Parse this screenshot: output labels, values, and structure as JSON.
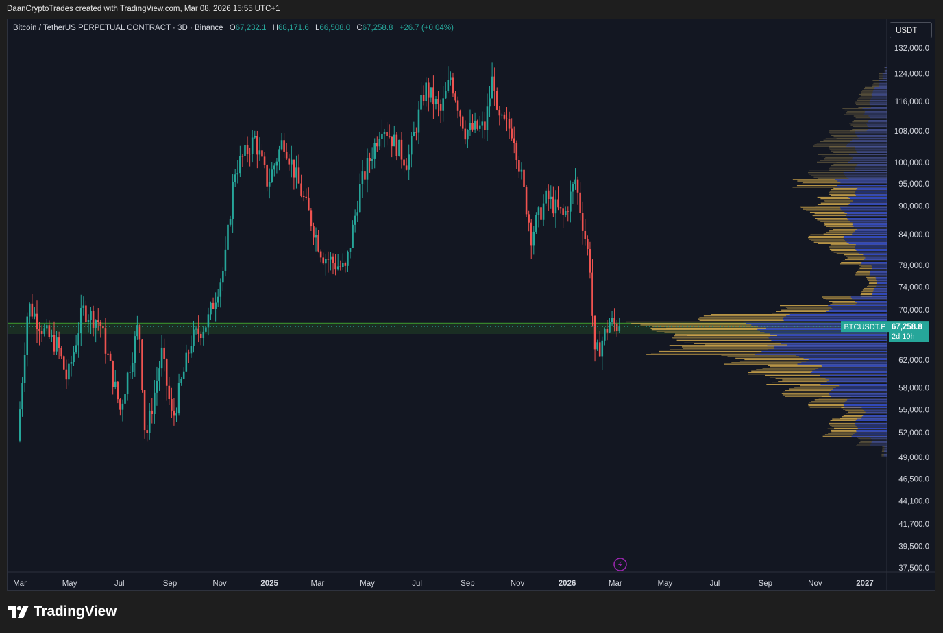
{
  "header": {
    "credit": "DaanCryptoTrades created with TradingView.com, Mar 08, 2026 15:55 UTC+1"
  },
  "legend": {
    "symbol": "Bitcoin / TetherUS PERPETUAL CONTRACT · 3D · Binance",
    "open_label": "O",
    "open": "67,232.1",
    "high_label": "H",
    "high": "68,171.6",
    "low_label": "L",
    "low": "66,508.0",
    "close_label": "C",
    "close": "67,258.8",
    "change": "+26.7 (+0.04%)"
  },
  "currency": "USDT",
  "price_badge": {
    "ticker": "BTCUSDT.P",
    "price": "67,258.8",
    "countdown": "2d 10h"
  },
  "footer": {
    "brand": "TradingView"
  },
  "colors": {
    "up": "#26a69a",
    "down": "#ef5350",
    "profile_gold": "#c9a24a",
    "profile_blue": "#2a45c0",
    "zone": "#3f9b2e",
    "accent": "#9c27b0"
  },
  "chart_data": {
    "type": "candlestick",
    "x_ticks": [
      "Mar",
      "May",
      "Jul",
      "Sep",
      "Nov",
      "2025",
      "Mar",
      "May",
      "Jul",
      "Sep",
      "Nov",
      "2026",
      "Mar",
      "May",
      "Jul",
      "Sep",
      "Nov",
      "2027"
    ],
    "y_ticks": [
      132000,
      124000,
      116000,
      108000,
      100000,
      95000,
      90000,
      84000,
      78000,
      74000,
      70000,
      62000,
      58000,
      55000,
      52000,
      49000,
      46500,
      44100,
      41700,
      39500,
      37500
    ],
    "y_tick_labels": [
      "132,000.0",
      "124,000.0",
      "116,000.0",
      "108,000.0",
      "100,000.0",
      "95,000.0",
      "90,000.0",
      "84,000.0",
      "78,000.0",
      "74,000.0",
      "70,000.0",
      "62,000.0",
      "58,000.0",
      "55,000.0",
      "52,000.0",
      "49,000.0",
      "46,500.0",
      "44,100.0",
      "41,700.0",
      "39,500.0",
      "37,500.0"
    ],
    "ylim": [
      37500,
      132000
    ],
    "scale": "log",
    "price_path": [
      {
        "date": "2024-03-01",
        "price": 51000
      },
      {
        "date": "2024-03-14",
        "price": 71000
      },
      {
        "date": "2024-04-05",
        "price": 66000
      },
      {
        "date": "2024-04-20",
        "price": 64000
      },
      {
        "date": "2024-05-01",
        "price": 59000
      },
      {
        "date": "2024-05-20",
        "price": 70000
      },
      {
        "date": "2024-06-10",
        "price": 68000
      },
      {
        "date": "2024-07-05",
        "price": 55000
      },
      {
        "date": "2024-07-28",
        "price": 68000
      },
      {
        "date": "2024-08-05",
        "price": 51000
      },
      {
        "date": "2024-08-25",
        "price": 63000
      },
      {
        "date": "2024-09-07",
        "price": 53500
      },
      {
        "date": "2024-09-30",
        "price": 65000
      },
      {
        "date": "2024-10-20",
        "price": 68000
      },
      {
        "date": "2024-11-10",
        "price": 78000
      },
      {
        "date": "2024-11-22",
        "price": 98000
      },
      {
        "date": "2024-12-17",
        "price": 106000
      },
      {
        "date": "2025-01-02",
        "price": 95000
      },
      {
        "date": "2025-01-21",
        "price": 106000
      },
      {
        "date": "2025-02-05",
        "price": 97000
      },
      {
        "date": "2025-03-10",
        "price": 80000
      },
      {
        "date": "2025-04-07",
        "price": 77000
      },
      {
        "date": "2025-04-25",
        "price": 94000
      },
      {
        "date": "2025-05-22",
        "price": 110000
      },
      {
        "date": "2025-06-22",
        "price": 100000
      },
      {
        "date": "2025-07-14",
        "price": 120000
      },
      {
        "date": "2025-08-02",
        "price": 113000
      },
      {
        "date": "2025-08-14",
        "price": 123000
      },
      {
        "date": "2025-09-01",
        "price": 108000
      },
      {
        "date": "2025-09-25",
        "price": 109000
      },
      {
        "date": "2025-10-06",
        "price": 125000
      },
      {
        "date": "2025-10-10",
        "price": 111000
      },
      {
        "date": "2025-10-30",
        "price": 108000
      },
      {
        "date": "2025-11-21",
        "price": 84000
      },
      {
        "date": "2025-12-10",
        "price": 92000
      },
      {
        "date": "2025-12-31",
        "price": 87500
      },
      {
        "date": "2026-01-14",
        "price": 96000
      },
      {
        "date": "2026-02-02",
        "price": 77000
      },
      {
        "date": "2026-02-06",
        "price": 62000
      },
      {
        "date": "2026-02-25",
        "price": 68000
      },
      {
        "date": "2026-03-08",
        "price": 67258.8
      }
    ],
    "zone": {
      "low": 66200,
      "high": 67800
    },
    "last_price": 67258.8,
    "volume_profile": {
      "value_area": [
        52000,
        95000
      ],
      "relative_volume": [
        {
          "price": 49500,
          "vol": 0.02
        },
        {
          "price": 51000,
          "vol": 0.12
        },
        {
          "price": 52000,
          "vol": 0.25
        },
        {
          "price": 53000,
          "vol": 0.22
        },
        {
          "price": 54500,
          "vol": 0.18
        },
        {
          "price": 56000,
          "vol": 0.3
        },
        {
          "price": 57500,
          "vol": 0.4
        },
        {
          "price": 59000,
          "vol": 0.48
        },
        {
          "price": 60500,
          "vol": 0.53
        },
        {
          "price": 62000,
          "vol": 0.65
        },
        {
          "price": 63500,
          "vol": 0.92
        },
        {
          "price": 65000,
          "vol": 0.82
        },
        {
          "price": 66500,
          "vol": 0.9
        },
        {
          "price": 67500,
          "vol": 1.0
        },
        {
          "price": 68500,
          "vol": 0.72
        },
        {
          "price": 70000,
          "vol": 0.45
        },
        {
          "price": 71500,
          "vol": 0.25
        },
        {
          "price": 73000,
          "vol": 0.1
        },
        {
          "price": 75000,
          "vol": 0.08
        },
        {
          "price": 77000,
          "vol": 0.12
        },
        {
          "price": 79000,
          "vol": 0.18
        },
        {
          "price": 81000,
          "vol": 0.22
        },
        {
          "price": 83000,
          "vol": 0.3
        },
        {
          "price": 85000,
          "vol": 0.25
        },
        {
          "price": 87000,
          "vol": 0.28
        },
        {
          "price": 89000,
          "vol": 0.33
        },
        {
          "price": 91000,
          "vol": 0.28
        },
        {
          "price": 93000,
          "vol": 0.22
        },
        {
          "price": 95000,
          "vol": 0.38
        },
        {
          "price": 97000,
          "vol": 0.3
        },
        {
          "price": 99000,
          "vol": 0.22
        },
        {
          "price": 101000,
          "vol": 0.28
        },
        {
          "price": 103000,
          "vol": 0.22
        },
        {
          "price": 105000,
          "vol": 0.28
        },
        {
          "price": 107000,
          "vol": 0.22
        },
        {
          "price": 109000,
          "vol": 0.15
        },
        {
          "price": 111000,
          "vol": 0.14
        },
        {
          "price": 113000,
          "vol": 0.18
        },
        {
          "price": 115000,
          "vol": 0.12
        },
        {
          "price": 117000,
          "vol": 0.12
        },
        {
          "price": 119000,
          "vol": 0.1
        },
        {
          "price": 121000,
          "vol": 0.06
        },
        {
          "price": 123000,
          "vol": 0.03
        },
        {
          "price": 125000,
          "vol": 0.01
        }
      ]
    }
  }
}
